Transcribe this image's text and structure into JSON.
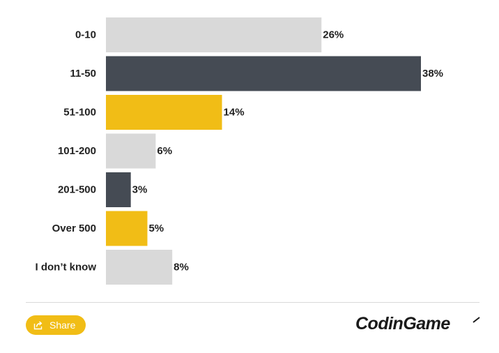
{
  "chart_data": {
    "type": "bar",
    "orientation": "horizontal",
    "categories": [
      "0-10",
      "11-50",
      "51-100",
      "101-200",
      "201-500",
      "Over 500",
      "I don’t know"
    ],
    "values": [
      26,
      38,
      14,
      6,
      3,
      5,
      8
    ],
    "value_labels": [
      "26%",
      "38%",
      "14%",
      "6%",
      "3%",
      "5%",
      "8%"
    ],
    "unit": "%",
    "bar_colors": [
      "#d9d9d9",
      "#454b54",
      "#f1bd16",
      "#d9d9d9",
      "#454b54",
      "#f1bd16",
      "#d9d9d9"
    ],
    "xlim": [
      0,
      38
    ],
    "grid": false,
    "legend": "none"
  },
  "footer": {
    "share_label": "Share",
    "share_icon": "share-icon",
    "brand": "CodinGame",
    "accent_color": "#f1bd16"
  }
}
